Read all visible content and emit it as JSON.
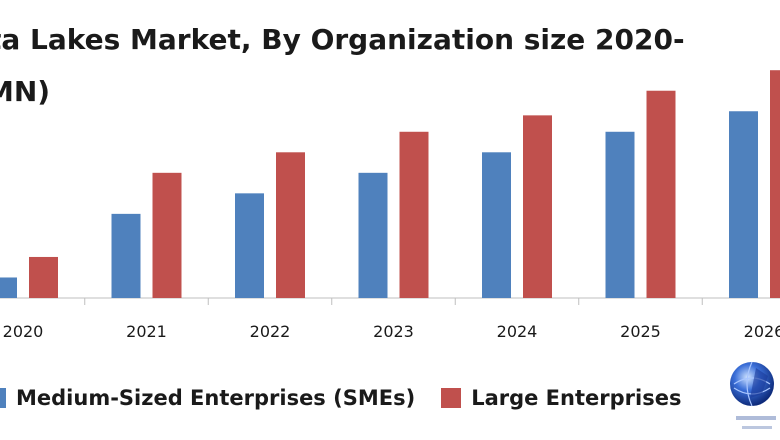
{
  "chart_data": {
    "type": "bar",
    "title_lines": [
      "ta Lakes Market, By Organization size 2020-",
      "MN)"
    ],
    "categories": [
      "2020",
      "2021",
      "2022",
      "2023",
      "2024",
      "2025",
      "2026"
    ],
    "series": [
      {
        "name": "Medium-Sized Enterprises (SMEs)",
        "color": "#4f81bd",
        "values": [
          1.0,
          4.1,
          5.1,
          6.1,
          7.1,
          8.1,
          9.1
        ]
      },
      {
        "name": "Large Enterprises",
        "color": "#c0504d",
        "values": [
          2.0,
          6.1,
          7.1,
          8.1,
          8.9,
          10.1,
          11.1
        ]
      }
    ],
    "ylim": [
      0,
      11.5
    ],
    "grid": false,
    "legend_position": "bottom"
  },
  "legend": {
    "sme_label": "Medium-Sized Enterprises (SMEs)",
    "large_label": "Large Enterprises"
  }
}
